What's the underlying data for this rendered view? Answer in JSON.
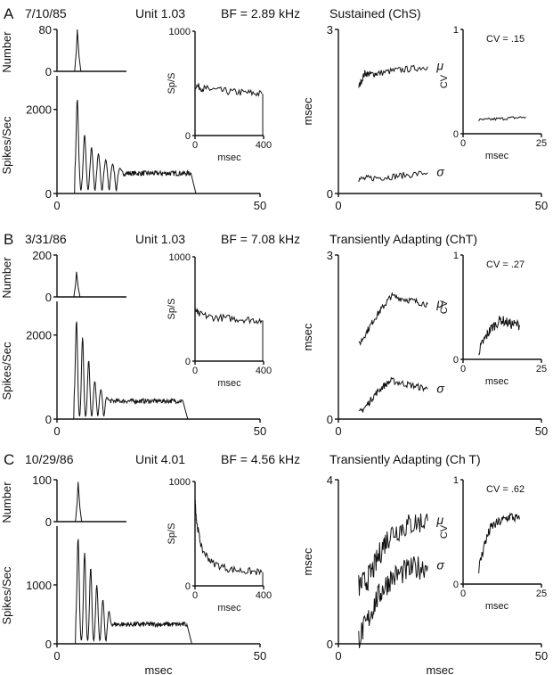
{
  "figure": {
    "panels": [
      {
        "letter": "A",
        "date": "7/10/85",
        "unit": "Unit 1.03",
        "bf": "BF = 2.89 kHz",
        "type_label": "Sustained (ChS)",
        "cv_label": "CV = .15"
      },
      {
        "letter": "B",
        "date": "3/31/86",
        "unit": "Unit 1.03",
        "bf": "BF = 7.08 kHz",
        "type_label": "Transiently Adapting (ChT)",
        "cv_label": "CV = .27"
      },
      {
        "letter": "C",
        "date": "10/29/86",
        "unit": "Unit 4.01",
        "bf": "BF = 4.56 kHz",
        "type_label": "Transiently Adapting (Ch T)",
        "cv_label": "CV = .62"
      }
    ]
  },
  "chart_data": [
    {
      "panel": "A",
      "type": "line",
      "name": "PST histogram",
      "xlabel": "",
      "ylabel": "Spikes/Sec",
      "xlim": [
        0,
        50
      ],
      "ylim": [
        0,
        2800
      ],
      "x_ticks": [
        0,
        50
      ],
      "y_ticks": [
        0,
        2000
      ],
      "peaks": [
        {
          "x": 5.0,
          "y": 2250
        },
        {
          "x": 6.8,
          "y": 1400
        },
        {
          "x": 8.5,
          "y": 1100
        },
        {
          "x": 10.2,
          "y": 950
        },
        {
          "x": 12.0,
          "y": 800
        },
        {
          "x": 13.7,
          "y": 700
        },
        {
          "x": 15.5,
          "y": 600
        }
      ],
      "onset": 4.2,
      "sustained_rate": 480,
      "offset": 33
    },
    {
      "panel": "A",
      "type": "line",
      "name": "first-spike latency histogram",
      "ylabel": "Number",
      "ylim": [
        0,
        80
      ],
      "y_ticks": [
        0,
        80
      ],
      "peak_x": 5.0,
      "peak_y": 80
    },
    {
      "panel": "A",
      "type": "line",
      "name": "rate vs time",
      "xlabel": "msec",
      "ylabel": "Sp/S",
      "xlim": [
        0,
        400
      ],
      "ylim": [
        0,
        1000
      ],
      "x_ticks": [
        0,
        400
      ],
      "y_ticks": [
        0,
        1000
      ],
      "points": [
        [
          0,
          480
        ],
        [
          50,
          450
        ],
        [
          100,
          440
        ],
        [
          200,
          420
        ],
        [
          300,
          410
        ],
        [
          390,
          400
        ]
      ]
    },
    {
      "panel": "A",
      "type": "line",
      "name": "regularity",
      "xlabel": "",
      "ylabel": "msec",
      "xlim": [
        0,
        50
      ],
      "ylim": [
        0,
        3
      ],
      "x_ticks": [
        0,
        50
      ],
      "y_ticks": [
        0,
        3
      ],
      "series": [
        {
          "name": "μ",
          "x": [
            5,
            6.5,
            8,
            10,
            14,
            18,
            22
          ],
          "y": [
            1.95,
            2.2,
            2.18,
            2.2,
            2.25,
            2.28,
            2.32
          ]
        },
        {
          "name": "σ",
          "x": [
            5,
            8,
            12,
            16,
            22
          ],
          "y": [
            0.26,
            0.28,
            0.3,
            0.33,
            0.38
          ]
        }
      ]
    },
    {
      "panel": "A",
      "type": "line",
      "name": "CV vs time",
      "xlabel": "msec",
      "ylabel": "CV",
      "xlim": [
        0,
        25
      ],
      "ylim": [
        0,
        1
      ],
      "x_ticks": [
        0,
        25
      ],
      "y_ticks": [
        0,
        1
      ],
      "points": [
        [
          5,
          0.13
        ],
        [
          10,
          0.14
        ],
        [
          15,
          0.15
        ],
        [
          20,
          0.16
        ]
      ]
    },
    {
      "panel": "B",
      "type": "line",
      "name": "PST histogram",
      "xlabel": "",
      "ylabel": "Spikes/Sec",
      "xlim": [
        0,
        50
      ],
      "ylim": [
        0,
        2800
      ],
      "x_ticks": [
        0,
        50
      ],
      "y_ticks": [
        0,
        2000
      ],
      "peaks": [
        {
          "x": 4.8,
          "y": 2350
        },
        {
          "x": 6.3,
          "y": 1950
        },
        {
          "x": 7.8,
          "y": 1400
        },
        {
          "x": 9.3,
          "y": 900
        },
        {
          "x": 10.8,
          "y": 700
        },
        {
          "x": 12.3,
          "y": 520
        }
      ],
      "onset": 4.0,
      "sustained_rate": 430,
      "offset": 31
    },
    {
      "panel": "B",
      "type": "line",
      "name": "first-spike latency histogram",
      "ylabel": "Number",
      "ylim": [
        0,
        200
      ],
      "y_ticks": [
        0,
        200
      ],
      "peak_x": 4.8,
      "peak_y": 120
    },
    {
      "panel": "B",
      "type": "line",
      "name": "rate vs time",
      "xlabel": "msec",
      "ylabel": "Sp/S",
      "xlim": [
        0,
        400
      ],
      "ylim": [
        0,
        1000
      ],
      "x_ticks": [
        0,
        400
      ],
      "y_ticks": [
        0,
        1000
      ],
      "points": [
        [
          0,
          500
        ],
        [
          20,
          450
        ],
        [
          100,
          420
        ],
        [
          200,
          410
        ],
        [
          300,
          400
        ],
        [
          390,
          390
        ]
      ]
    },
    {
      "panel": "B",
      "type": "line",
      "name": "regularity",
      "xlabel": "",
      "ylabel": "msec",
      "xlim": [
        0,
        50
      ],
      "ylim": [
        0,
        3
      ],
      "x_ticks": [
        0,
        50
      ],
      "y_ticks": [
        0,
        3
      ],
      "series": [
        {
          "name": "μ",
          "x": [
            5,
            7,
            9,
            11,
            13,
            16,
            19,
            22
          ],
          "y": [
            1.35,
            1.6,
            1.85,
            2.05,
            2.25,
            2.2,
            2.15,
            2.1
          ]
        },
        {
          "name": "σ",
          "x": [
            5,
            7,
            9,
            11,
            13,
            16,
            19,
            22
          ],
          "y": [
            0.1,
            0.25,
            0.45,
            0.6,
            0.7,
            0.65,
            0.6,
            0.55
          ]
        }
      ]
    },
    {
      "panel": "B",
      "type": "line",
      "name": "CV vs time",
      "xlabel": "msec",
      "ylabel": "CV",
      "xlim": [
        0,
        25
      ],
      "ylim": [
        0,
        1
      ],
      "x_ticks": [
        0,
        25
      ],
      "y_ticks": [
        0,
        1
      ],
      "points": [
        [
          5,
          0.08
        ],
        [
          7,
          0.2
        ],
        [
          9,
          0.3
        ],
        [
          12,
          0.38
        ],
        [
          15,
          0.34
        ],
        [
          18,
          0.33
        ]
      ]
    },
    {
      "panel": "C",
      "type": "line",
      "name": "PST histogram",
      "xlabel": "msec",
      "ylabel": "Spikes/Sec",
      "xlim": [
        0,
        50
      ],
      "ylim": [
        0,
        2000
      ],
      "x_ticks": [
        0,
        50
      ],
      "y_ticks": [
        0,
        1000
      ],
      "peaks": [
        {
          "x": 5.2,
          "y": 1800
        },
        {
          "x": 6.8,
          "y": 1550
        },
        {
          "x": 8.3,
          "y": 1300
        },
        {
          "x": 9.8,
          "y": 1000
        },
        {
          "x": 11.3,
          "y": 750
        },
        {
          "x": 12.8,
          "y": 550
        }
      ],
      "onset": 4.4,
      "sustained_rate": 330,
      "offset": 32
    },
    {
      "panel": "C",
      "type": "line",
      "name": "first-spike latency histogram",
      "ylabel": "Number",
      "ylim": [
        0,
        100
      ],
      "y_ticks": [
        0,
        100
      ],
      "peak_x": 5.2,
      "peak_y": 95
    },
    {
      "panel": "C",
      "type": "line",
      "name": "rate vs time",
      "xlabel": "msec",
      "ylabel": "Sp/S",
      "xlim": [
        0,
        400
      ],
      "ylim": [
        0,
        1000
      ],
      "x_ticks": [
        0,
        400
      ],
      "y_ticks": [
        0,
        1000
      ],
      "points": [
        [
          0,
          820
        ],
        [
          10,
          600
        ],
        [
          40,
          350
        ],
        [
          100,
          220
        ],
        [
          200,
          160
        ],
        [
          300,
          140
        ],
        [
          390,
          130
        ]
      ]
    },
    {
      "panel": "C",
      "type": "line",
      "name": "regularity",
      "xlabel": "msec",
      "ylabel": "msec",
      "xlim": [
        0,
        50
      ],
      "ylim": [
        0,
        4
      ],
      "x_ticks": [
        0,
        50
      ],
      "y_ticks": [
        0,
        4
      ],
      "series": [
        {
          "name": "μ",
          "x": [
            5,
            7,
            9,
            11,
            13,
            16,
            19,
            22
          ],
          "y": [
            1.4,
            1.55,
            1.9,
            2.4,
            2.7,
            2.85,
            2.95,
            3.0
          ]
        },
        {
          "name": "σ",
          "x": [
            5,
            7,
            9,
            11,
            13,
            16,
            19,
            22
          ],
          "y": [
            0.15,
            0.5,
            1.0,
            1.35,
            1.6,
            1.75,
            1.85,
            1.9
          ]
        }
      ]
    },
    {
      "panel": "C",
      "type": "line",
      "name": "CV vs time",
      "xlabel": "msec",
      "ylabel": "CV",
      "xlim": [
        0,
        25
      ],
      "ylim": [
        0,
        1
      ],
      "x_ticks": [
        0,
        25
      ],
      "y_ticks": [
        0,
        1
      ],
      "points": [
        [
          5,
          0.15
        ],
        [
          7,
          0.4
        ],
        [
          9,
          0.55
        ],
        [
          12,
          0.6
        ],
        [
          15,
          0.65
        ],
        [
          18,
          0.62
        ]
      ]
    }
  ]
}
